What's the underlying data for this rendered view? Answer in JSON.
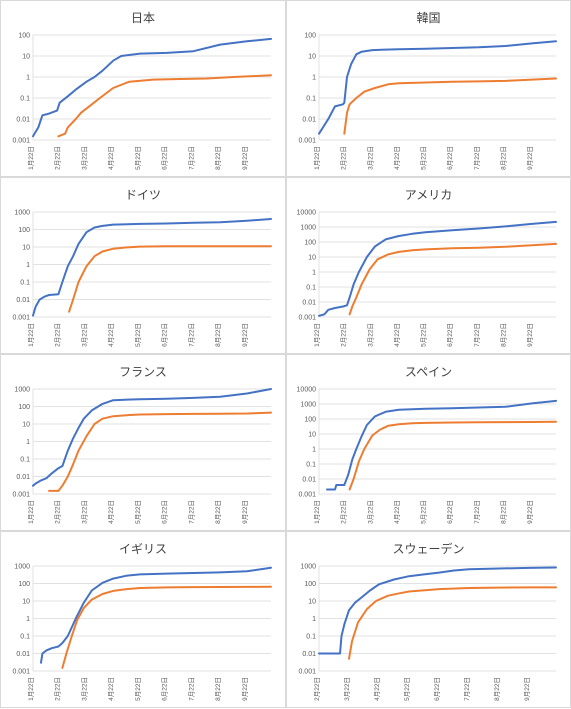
{
  "colors": {
    "series_a": "#4472c4",
    "series_b": "#ed7d31",
    "grid": "#d9d9d9",
    "axis_text": "#595959"
  },
  "chart_data": [
    {
      "type": "line",
      "scale": "log",
      "title": "日本",
      "ylim": [
        0.001,
        100
      ],
      "yticks": [
        "0.001",
        "0.01",
        "0.1",
        "1",
        "10",
        "100"
      ],
      "categories": [
        "1月22日",
        "2月22日",
        "3月22日",
        "4月22日",
        "5月22日",
        "6月22日",
        "7月22日",
        "8月22日",
        "9月22日"
      ],
      "series": [
        {
          "x": [
            0,
            0.2,
            0.35,
            0.6,
            0.9,
            1.0,
            1.3,
            1.6,
            2.0,
            2.3,
            2.6,
            3.0,
            3.3,
            4.0,
            5.0,
            6.0,
            7.0,
            8.0,
            8.9
          ],
          "values": [
            0.0015,
            0.004,
            0.015,
            0.018,
            0.025,
            0.06,
            0.12,
            0.25,
            0.6,
            1.0,
            2.0,
            6.0,
            10,
            13,
            14,
            17,
            35,
            50,
            65
          ]
        },
        {
          "x": [
            0.95,
            1.2,
            1.3,
            1.6,
            1.8,
            2.1,
            2.5,
            3.0,
            3.6,
            4.5,
            5.5,
            6.5,
            7.5,
            8.9
          ],
          "values": [
            0.0015,
            0.002,
            0.004,
            0.01,
            0.02,
            0.04,
            0.1,
            0.3,
            0.6,
            0.75,
            0.8,
            0.85,
            1.0,
            1.2
          ]
        }
      ]
    },
    {
      "type": "line",
      "scale": "log",
      "title": "韓国",
      "ylim": [
        0.001,
        100
      ],
      "yticks": [
        "0.001",
        "0.01",
        "0.1",
        "1",
        "10",
        "100"
      ],
      "categories": [
        "1月22日",
        "2月22日",
        "3月22日",
        "4月22日",
        "5月22日",
        "6月22日",
        "7月22日",
        "8月22日",
        "9月22日"
      ],
      "series": [
        {
          "x": [
            0,
            0.15,
            0.35,
            0.6,
            0.9,
            0.95,
            1.05,
            1.2,
            1.4,
            1.6,
            2.0,
            3.0,
            4.0,
            5.0,
            6.0,
            7.0,
            8.0,
            8.9
          ],
          "values": [
            0.002,
            0.004,
            0.01,
            0.04,
            0.05,
            0.06,
            1.0,
            4.0,
            12,
            16,
            19,
            21,
            22,
            24,
            26,
            30,
            40,
            50
          ]
        },
        {
          "x": [
            0.95,
            1.05,
            1.15,
            1.4,
            1.7,
            2.1,
            2.6,
            3.0,
            4.0,
            5.0,
            6.0,
            7.0,
            8.0,
            8.9
          ],
          "values": [
            0.002,
            0.02,
            0.05,
            0.1,
            0.2,
            0.3,
            0.45,
            0.5,
            0.55,
            0.6,
            0.62,
            0.65,
            0.75,
            0.85
          ]
        }
      ]
    },
    {
      "type": "line",
      "scale": "log",
      "title": "ドイツ",
      "ylim": [
        0.001,
        1000
      ],
      "yticks": [
        "0.001",
        "0.01",
        "0.1",
        "1",
        "10",
        "100",
        "1000"
      ],
      "categories": [
        "1月22日",
        "2月22日",
        "3月22日",
        "4月22日",
        "5月22日",
        "6月22日",
        "7月22日",
        "8月22日",
        "9月22日"
      ],
      "series": [
        {
          "x": [
            0,
            0.1,
            0.25,
            0.45,
            0.6,
            0.95,
            1.1,
            1.3,
            1.5,
            1.7,
            2.0,
            2.3,
            2.6,
            3.0,
            4.0,
            5.0,
            6.0,
            7.0,
            8.0,
            8.9
          ],
          "values": [
            0.0012,
            0.004,
            0.01,
            0.015,
            0.018,
            0.02,
            0.1,
            0.8,
            3.0,
            15,
            70,
            130,
            160,
            190,
            210,
            220,
            240,
            260,
            320,
            400
          ]
        },
        {
          "x": [
            1.35,
            1.5,
            1.7,
            2.0,
            2.3,
            2.6,
            3.0,
            3.5,
            4.0,
            5.0,
            6.0,
            7.0,
            8.0,
            8.9
          ],
          "values": [
            0.002,
            0.01,
            0.1,
            0.8,
            3.0,
            5.5,
            8.0,
            9.5,
            10.5,
            11,
            11,
            11,
            11,
            11
          ]
        }
      ]
    },
    {
      "type": "line",
      "scale": "log",
      "title": "アメリカ",
      "ylim": [
        0.001,
        10000
      ],
      "yticks": [
        "0.001",
        "0.01",
        "0.1",
        "1",
        "10",
        "100",
        "1000",
        "10000"
      ],
      "categories": [
        "1月22日",
        "2月22日",
        "3月22日",
        "4月22日",
        "5月22日",
        "6月22日",
        "7月22日",
        "8月22日",
        "9月22日"
      ],
      "series": [
        {
          "x": [
            0,
            0.2,
            0.35,
            0.6,
            0.9,
            1.05,
            1.15,
            1.3,
            1.5,
            1.8,
            2.1,
            2.5,
            3.0,
            3.5,
            4.0,
            5.0,
            6.0,
            7.0,
            8.0,
            8.9
          ],
          "values": [
            0.0012,
            0.0015,
            0.003,
            0.004,
            0.005,
            0.006,
            0.02,
            0.15,
            1.0,
            10,
            50,
            150,
            250,
            350,
            450,
            600,
            800,
            1100,
            1600,
            2200
          ]
        },
        {
          "x": [
            1.15,
            1.25,
            1.4,
            1.6,
            1.9,
            2.2,
            2.6,
            3.0,
            3.5,
            4.0,
            5.0,
            6.0,
            7.0,
            8.0,
            8.9
          ],
          "values": [
            0.0015,
            0.005,
            0.02,
            0.15,
            1.5,
            7,
            15,
            22,
            28,
            32,
            38,
            42,
            48,
            60,
            75
          ]
        }
      ]
    },
    {
      "type": "line",
      "scale": "log",
      "title": "フランス",
      "ylim": [
        0.001,
        1000
      ],
      "yticks": [
        "0.001",
        "0.01",
        "0.1",
        "1",
        "10",
        "100",
        "1000"
      ],
      "categories": [
        "1月22日",
        "2月22日",
        "3月22日",
        "4月22日",
        "5月22日",
        "6月22日",
        "7月22日",
        "8月22日",
        "9月22日"
      ],
      "series": [
        {
          "x": [
            0,
            0.1,
            0.3,
            0.5,
            0.7,
            0.95,
            1.1,
            1.3,
            1.5,
            1.7,
            1.9,
            2.2,
            2.6,
            3.0,
            4.0,
            5.0,
            6.0,
            7.0,
            8.0,
            8.9
          ],
          "values": [
            0.003,
            0.004,
            0.006,
            0.008,
            0.015,
            0.03,
            0.04,
            0.3,
            1.5,
            6,
            20,
            60,
            140,
            230,
            260,
            280,
            310,
            360,
            550,
            1000
          ]
        },
        {
          "x": [
            0.6,
            0.95,
            1.1,
            1.3,
            1.5,
            1.7,
            2.0,
            2.3,
            2.6,
            3.0,
            3.5,
            4.0,
            5.0,
            6.0,
            7.0,
            8.0,
            8.9
          ],
          "values": [
            0.0015,
            0.0015,
            0.003,
            0.01,
            0.05,
            0.3,
            2.0,
            10,
            20,
            28,
            32,
            35,
            37,
            38,
            39,
            40,
            45
          ]
        }
      ]
    },
    {
      "type": "line",
      "scale": "log",
      "title": "スペイン",
      "ylim": [
        0.001,
        10000
      ],
      "yticks": [
        "0.001",
        "0.01",
        "0.1",
        "1",
        "10",
        "100",
        "1000",
        "10000"
      ],
      "categories": [
        "1月22日",
        "2月22日",
        "3月22日",
        "4月22日",
        "5月22日",
        "6月22日",
        "7月22日",
        "8月22日",
        "9月22日"
      ],
      "series": [
        {
          "x": [
            0.3,
            0.6,
            0.65,
            0.95,
            1.1,
            1.25,
            1.4,
            1.6,
            1.8,
            2.1,
            2.5,
            3.0,
            4.0,
            5.0,
            6.0,
            7.0,
            8.0,
            8.9
          ],
          "values": [
            0.002,
            0.002,
            0.004,
            0.004,
            0.02,
            0.2,
            1.0,
            7,
            40,
            150,
            300,
            420,
            480,
            520,
            580,
            650,
            1100,
            1600
          ]
        },
        {
          "x": [
            1.15,
            1.3,
            1.5,
            1.7,
            2.0,
            2.3,
            2.6,
            3.0,
            3.5,
            4.0,
            5.0,
            6.0,
            7.0,
            8.0,
            8.9
          ],
          "values": [
            0.002,
            0.01,
            0.15,
            1.0,
            8,
            20,
            35,
            45,
            52,
            55,
            58,
            60,
            62,
            63,
            65
          ]
        }
      ]
    },
    {
      "type": "line",
      "scale": "log",
      "title": "イギリス",
      "ylim": [
        0.001,
        1000
      ],
      "yticks": [
        "0.001",
        "0.01",
        "0.1",
        "1",
        "10",
        "100",
        "1000"
      ],
      "categories": [
        "1月22日",
        "2月22日",
        "3月22日",
        "4月22日",
        "5月22日",
        "6月22日",
        "7月22日",
        "8月22日",
        "9月22日"
      ],
      "series": [
        {
          "x": [
            0.3,
            0.35,
            0.5,
            0.7,
            0.95,
            1.1,
            1.3,
            1.6,
            1.9,
            2.2,
            2.6,
            3.0,
            3.5,
            4.0,
            5.0,
            6.0,
            7.0,
            8.0,
            8.9
          ],
          "values": [
            0.003,
            0.01,
            0.015,
            0.02,
            0.025,
            0.04,
            0.1,
            1.0,
            8,
            40,
            110,
            190,
            280,
            330,
            370,
            400,
            430,
            500,
            800
          ]
        },
        {
          "x": [
            1.1,
            1.25,
            1.45,
            1.65,
            1.9,
            2.2,
            2.6,
            3.0,
            3.5,
            4.0,
            5.0,
            6.0,
            7.0,
            8.0,
            8.9
          ],
          "values": [
            0.0015,
            0.01,
            0.1,
            0.8,
            4,
            12,
            25,
            38,
            48,
            55,
            60,
            62,
            63,
            64,
            65
          ]
        }
      ]
    },
    {
      "type": "line",
      "scale": "log",
      "title": "スウェーデン",
      "ylim": [
        0.001,
        1000
      ],
      "yticks": [
        "0.001",
        "0.01",
        "0.1",
        "1",
        "10",
        "100",
        "1000"
      ],
      "categories": [
        "2月22日",
        "3月22日",
        "4月22日",
        "5月22日",
        "6月22日",
        "7月22日",
        "8月22日",
        "9月22日"
      ],
      "series": [
        {
          "x": [
            0,
            0.7,
            0.75,
            0.85,
            1.0,
            1.2,
            1.4,
            1.7,
            2.0,
            2.5,
            3.0,
            3.5,
            4.0,
            4.5,
            5.0,
            6.0,
            7.0,
            7.9
          ],
          "values": [
            0.01,
            0.01,
            0.1,
            0.5,
            3,
            8,
            15,
            40,
            90,
            170,
            260,
            330,
            420,
            550,
            650,
            720,
            780,
            820
          ]
        },
        {
          "x": [
            1.0,
            1.1,
            1.3,
            1.6,
            1.9,
            2.3,
            2.7,
            3.0,
            4.0,
            5.0,
            6.0,
            7.0,
            7.9
          ],
          "values": [
            0.005,
            0.05,
            0.6,
            3.5,
            10,
            20,
            28,
            35,
            48,
            55,
            58,
            60,
            60
          ]
        }
      ]
    }
  ]
}
